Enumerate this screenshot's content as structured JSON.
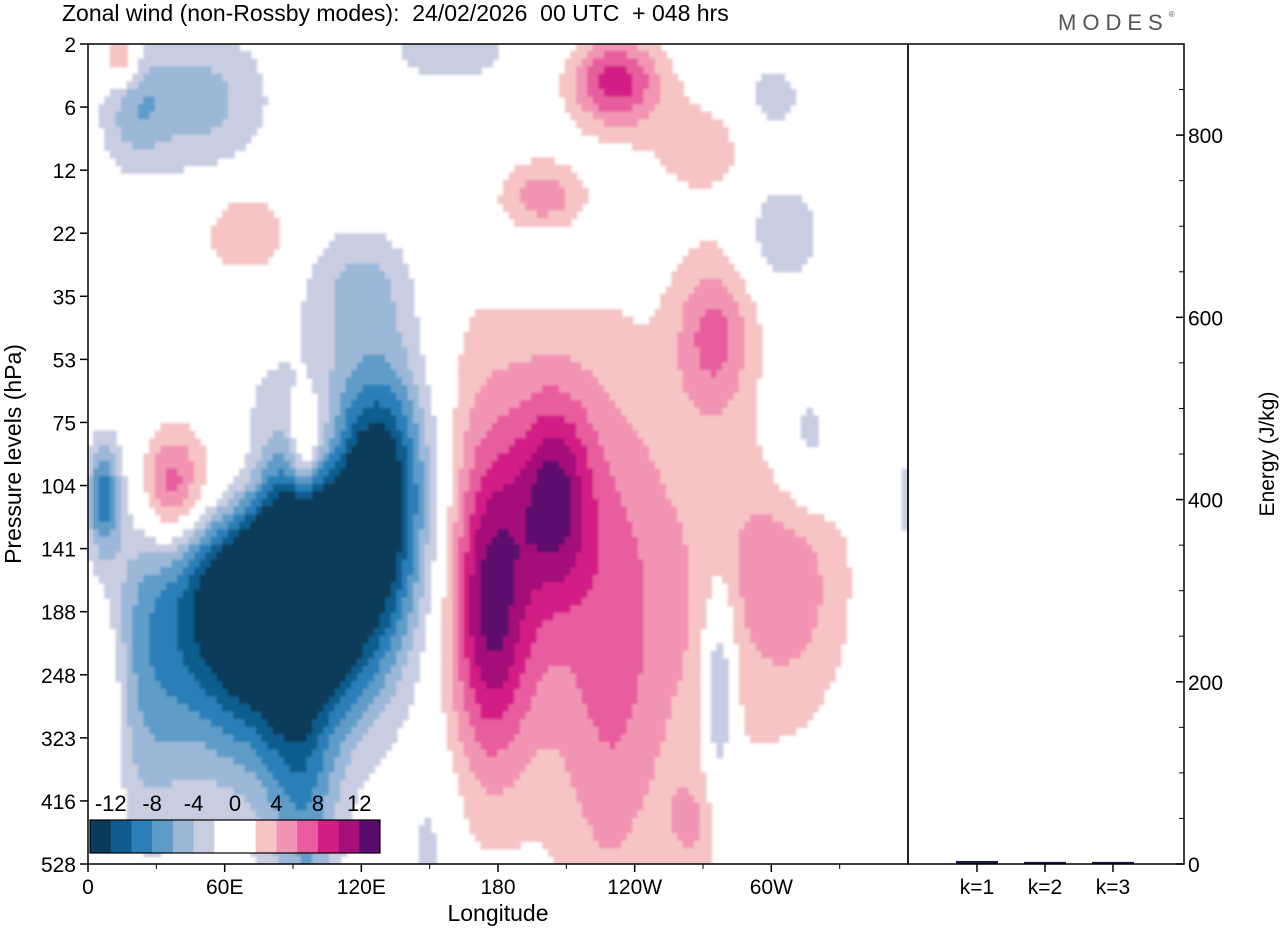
{
  "header": {
    "title": "Zonal wind (non-Rossby modes):  24/02/2026  00 UTC  + 048 hrs",
    "brand": "MODES",
    "brand_mark": "®"
  },
  "colors": {
    "negative": [
      "#0b3a5a",
      "#0f5d8e",
      "#2b7fb8",
      "#5e9cc8",
      "#9bb8d8",
      "#c9cde2"
    ],
    "positive": [
      "#f6c4c4",
      "#f294b4",
      "#e85d9e",
      "#d31d85",
      "#a50f7a",
      "#5b0a6e"
    ],
    "zero": "#ffffff",
    "energy_bar": "#1a1a4a"
  },
  "chart_data": [
    {
      "type": "heatmap",
      "title": "Zonal wind (non-Rossby modes)",
      "xlabel": "Longitude",
      "ylabel": "Pressure levels (hPa)",
      "x_ticks": [
        "0",
        "60E",
        "120E",
        "180",
        "120W",
        "60W"
      ],
      "x_tick_degrees": [
        0,
        60,
        120,
        180,
        240,
        300
      ],
      "xlim": [
        0,
        360
      ],
      "y_levels": [
        2,
        6,
        12,
        22,
        35,
        53,
        75,
        104,
        141,
        188,
        248,
        323,
        416,
        528
      ],
      "y_tick_labels": [
        "2",
        "6",
        "12",
        "22",
        "35",
        "53",
        "75",
        "104",
        "141",
        "188",
        "248",
        "323",
        "416",
        "528"
      ],
      "colorbar": {
        "labels": [
          "-12",
          "-8",
          "-4",
          "0",
          "4",
          "8",
          "12"
        ],
        "levels": [
          -14,
          -12,
          -10,
          -8,
          -6,
          -4,
          -2,
          2,
          4,
          6,
          8,
          10,
          12,
          14
        ]
      },
      "features": [
        {
          "lon": 120,
          "level_index": 7.9,
          "lon_spread": 22,
          "level_spread": 1.7,
          "value": -14
        },
        {
          "lon": 93,
          "level_index": 8.4,
          "lon_spread": 18,
          "level_spread": 1.3,
          "value": -11
        },
        {
          "lon": 63,
          "level_index": 8.5,
          "lon_spread": 20,
          "level_spread": 1.6,
          "value": -11
        },
        {
          "lon": 78,
          "level_index": 9.6,
          "lon_spread": 30,
          "level_spread": 1.8,
          "value": -6
        },
        {
          "lon": 25,
          "level_index": 9.9,
          "lon_spread": 14,
          "level_spread": 2.0,
          "value": -5
        },
        {
          "lon": 7,
          "level_index": 7.2,
          "lon_spread": 5,
          "level_spread": 0.6,
          "value": -9
        },
        {
          "lon": 90,
          "level_index": 11.3,
          "lon_spread": 10,
          "level_spread": 2.0,
          "value": -4
        },
        {
          "lon": 100,
          "level_index": 12.8,
          "lon_spread": 9,
          "level_spread": 1.5,
          "value": -3
        },
        {
          "lon": 132,
          "level_index": 6.4,
          "lon_spread": 14,
          "level_spread": 1.3,
          "value": -6
        },
        {
          "lon": 150,
          "level_index": 12.7,
          "lon_spread": 8,
          "level_spread": 1.3,
          "value": -3
        },
        {
          "lon": 277,
          "level_index": 10.2,
          "lon_spread": 5,
          "level_spread": 1.1,
          "value": -7
        },
        {
          "lon": 315,
          "level_index": 6.4,
          "lon_spread": 12,
          "level_spread": 0.9,
          "value": -5
        },
        {
          "lon": 48,
          "level_index": 0.9,
          "lon_spread": 22,
          "level_spread": 0.8,
          "value": -5
        },
        {
          "lon": 20,
          "level_index": 1.0,
          "lon_spread": 10,
          "level_spread": 0.7,
          "value": -4
        },
        {
          "lon": 120,
          "level_index": 3.8,
          "lon_spread": 18,
          "level_spread": 0.7,
          "value": -4
        },
        {
          "lon": 300,
          "level_index": 0.9,
          "lon_spread": 12,
          "level_spread": 0.5,
          "value": -3
        },
        {
          "lon": 305,
          "level_index": 3.0,
          "lon_spread": 12,
          "level_spread": 0.6,
          "value": -4
        },
        {
          "lon": 200,
          "level_index": 3.2,
          "lon_spread": 15,
          "level_spread": 0.6,
          "value": -3
        },
        {
          "lon": 160,
          "level_index": 0.1,
          "lon_spread": 25,
          "level_spread": 0.5,
          "value": -3
        },
        {
          "lon": 60,
          "level_index": 7.0,
          "lon_spread": 20,
          "level_spread": 0.8,
          "value": 9
        },
        {
          "lon": 36,
          "level_index": 7.1,
          "lon_spread": 9,
          "level_spread": 0.7,
          "value": 7
        },
        {
          "lon": 95,
          "level_index": 6.4,
          "lon_spread": 5,
          "level_spread": 0.6,
          "value": 7
        },
        {
          "lon": 177,
          "level_index": 8.9,
          "lon_spread": 12,
          "level_spread": 1.7,
          "value": 9
        },
        {
          "lon": 205,
          "level_index": 7.2,
          "lon_spread": 11,
          "level_spread": 1.1,
          "value": 8
        },
        {
          "lon": 190,
          "level_index": 8.0,
          "lon_spread": 40,
          "level_spread": 3.0,
          "value": 5
        },
        {
          "lon": 230,
          "level_index": 11.0,
          "lon_spread": 15,
          "level_spread": 3.4,
          "value": 3
        },
        {
          "lon": 260,
          "level_index": 9.0,
          "lon_spread": 30,
          "level_spread": 2.5,
          "value": 3
        },
        {
          "lon": 310,
          "level_index": 8.2,
          "lon_spread": 18,
          "level_spread": 1.7,
          "value": 5
        },
        {
          "lon": 232,
          "level_index": 0.6,
          "lon_spread": 14,
          "level_spread": 0.5,
          "value": 9
        },
        {
          "lon": 200,
          "level_index": 2.5,
          "lon_spread": 12,
          "level_spread": 0.4,
          "value": 6
        },
        {
          "lon": 275,
          "level_index": 4.6,
          "lon_spread": 12,
          "level_spread": 0.9,
          "value": 6
        },
        {
          "lon": 70,
          "level_index": 3.0,
          "lon_spread": 14,
          "level_spread": 0.5,
          "value": 4
        },
        {
          "lon": 15,
          "level_index": 0.2,
          "lon_spread": 6,
          "level_spread": 0.4,
          "value": 6
        },
        {
          "lon": 105,
          "level_index": 6.5,
          "lon_spread": 8,
          "level_spread": 0.7,
          "value": 5
        },
        {
          "lon": 270,
          "level_index": 1.6,
          "lon_spread": 18,
          "level_spread": 0.6,
          "value": 3
        },
        {
          "lon": 10,
          "level_index": 10.5,
          "lon_spread": 6,
          "level_spread": 1.2,
          "value": 3
        },
        {
          "lon": 265,
          "level_index": 12.4,
          "lon_spread": 8,
          "level_spread": 0.6,
          "value": 3
        }
      ]
    },
    {
      "type": "bar",
      "title": "",
      "xlabel": "",
      "ylabel": "Energy (J/kg)",
      "categories": [
        "k=1",
        "k=2",
        "k=3"
      ],
      "values": [
        2,
        1,
        1
      ],
      "ylim": [
        0,
        900
      ],
      "y_ticks": [
        "0",
        "200",
        "400",
        "600",
        "800"
      ],
      "y_tick_values": [
        0,
        200,
        400,
        600,
        800
      ]
    }
  ]
}
